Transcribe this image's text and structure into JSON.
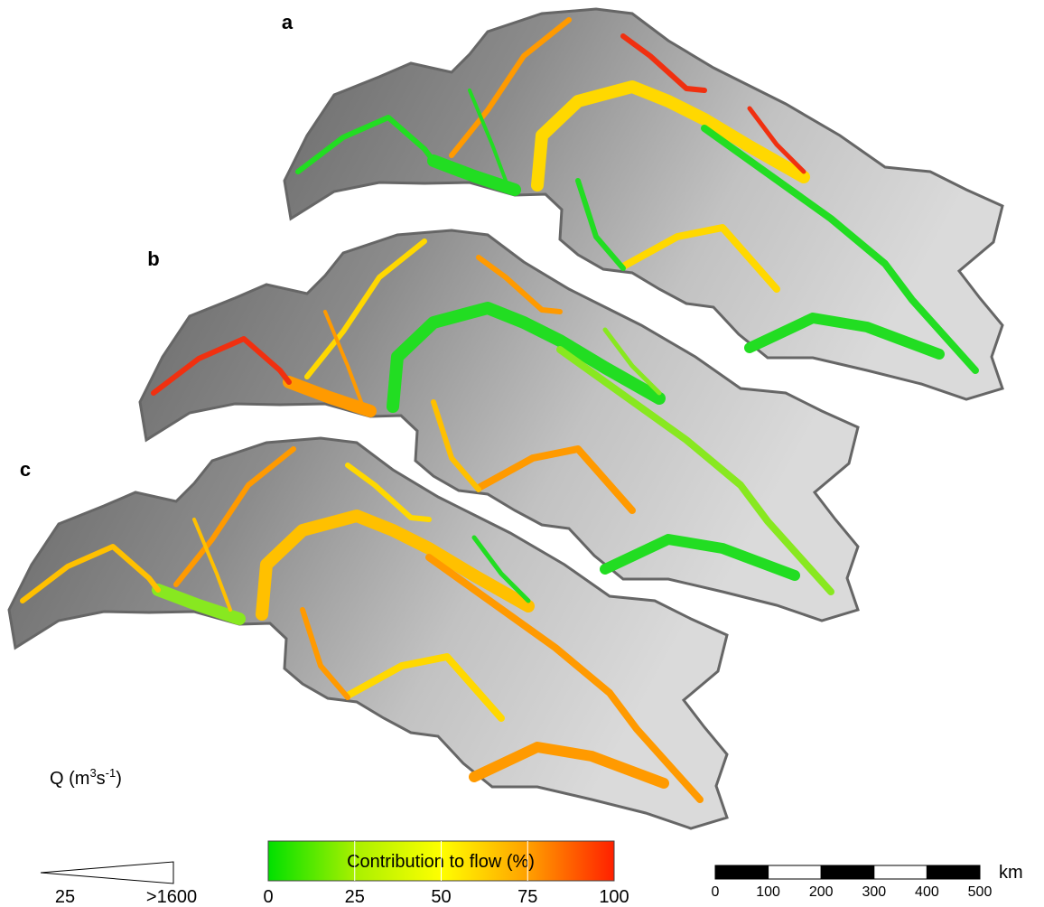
{
  "panels": [
    {
      "label": "a"
    },
    {
      "label": "b"
    },
    {
      "label": "c"
    }
  ],
  "legend": {
    "discharge": {
      "title": {
        "base": "Q (m",
        "sup1": "3",
        "mid": "s",
        "sup2": "-1",
        "end": ")"
      },
      "min": "25",
      "max": ">1600"
    },
    "colorbar": {
      "title": "Contribution to flow (%)",
      "ticks": [
        0,
        25,
        50,
        75,
        100
      ]
    },
    "scale_bar": {
      "ticks": [
        0,
        100,
        200,
        300,
        400,
        500
      ],
      "unit": "km"
    }
  }
}
